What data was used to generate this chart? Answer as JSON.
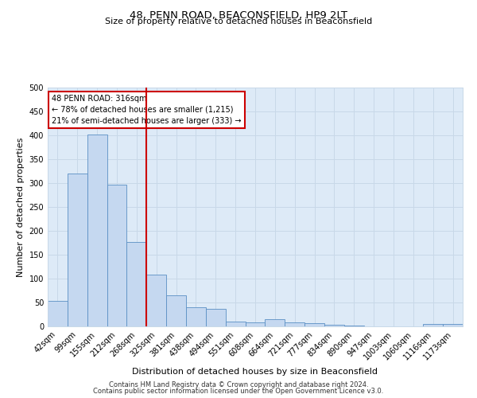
{
  "title": "48, PENN ROAD, BEACONSFIELD, HP9 2LT",
  "subtitle": "Size of property relative to detached houses in Beaconsfield",
  "xlabel": "Distribution of detached houses by size in Beaconsfield",
  "ylabel": "Number of detached properties",
  "footnote1": "Contains HM Land Registry data © Crown copyright and database right 2024.",
  "footnote2": "Contains public sector information licensed under the Open Government Licence v3.0.",
  "categories": [
    "42sqm",
    "99sqm",
    "155sqm",
    "212sqm",
    "268sqm",
    "325sqm",
    "381sqm",
    "438sqm",
    "494sqm",
    "551sqm",
    "608sqm",
    "664sqm",
    "721sqm",
    "777sqm",
    "834sqm",
    "890sqm",
    "947sqm",
    "1003sqm",
    "1060sqm",
    "1116sqm",
    "1173sqm"
  ],
  "values": [
    53,
    320,
    402,
    297,
    176,
    108,
    65,
    40,
    36,
    10,
    9,
    15,
    9,
    7,
    4,
    1,
    0,
    0,
    0,
    5,
    5
  ],
  "bar_color": "#c5d8f0",
  "bar_edge_color": "#5a8fc4",
  "marker_line_color": "#cc0000",
  "marker_line_index": 5,
  "annotation_line1": "48 PENN ROAD: 316sqm",
  "annotation_line2": "← 78% of detached houses are smaller (1,215)",
  "annotation_line3": "21% of semi-detached houses are larger (333) →",
  "annotation_box_color": "#ffffff",
  "annotation_box_edge": "#cc0000",
  "ylim": [
    0,
    500
  ],
  "yticks": [
    0,
    50,
    100,
    150,
    200,
    250,
    300,
    350,
    400,
    450,
    500
  ],
  "grid_color": "#c8d8e8",
  "background_color": "#ddeaf7",
  "title_fontsize": 9.5,
  "subtitle_fontsize": 8,
  "footnote_fontsize": 6,
  "ylabel_fontsize": 8,
  "xlabel_fontsize": 8,
  "tick_fontsize": 7,
  "annotation_fontsize": 7
}
